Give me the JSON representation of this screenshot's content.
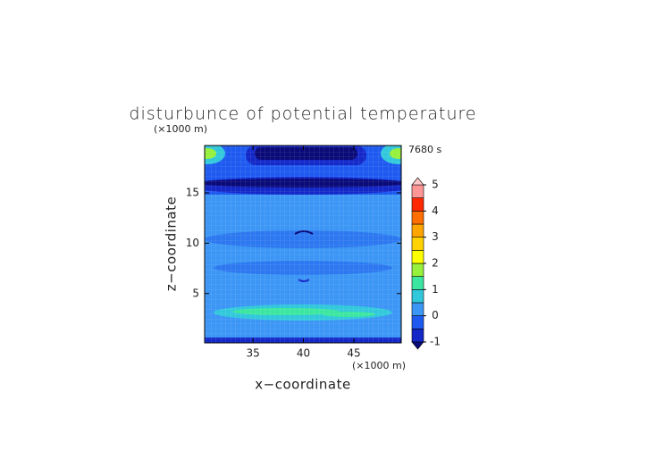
{
  "chart_data": {
    "type": "contour",
    "title": "disturbunce of potential temperature",
    "x_label": "x−coordinate",
    "y_label": "z−coordinate",
    "x_unit": "(×1000 m)",
    "y_unit": "(×1000 m)",
    "time_label": "7680 s",
    "xlim": [
      30.2,
      49.7
    ],
    "xticks": [
      35,
      40,
      45
    ],
    "ylim": [
      0.1,
      19.7
    ],
    "yticks": [
      5,
      10,
      15
    ],
    "colorbar": {
      "levels": [
        -1,
        -0.5,
        0,
        0.5,
        1,
        1.5,
        2,
        2.5,
        3,
        3.5,
        4,
        4.5,
        5
      ],
      "ticks": [
        -1,
        0,
        1,
        2,
        3,
        4,
        5
      ],
      "under_color": "#0a0a78",
      "over_color": "#ffc8c8",
      "colors": [
        "#1428c8",
        "#1e5af0",
        "#3c96f5",
        "#32c8dc",
        "#3ce6a0",
        "#96f03c",
        "#ffff00",
        "#ffd200",
        "#ffa500",
        "#ff6e00",
        "#ff2800",
        "#ff9696"
      ]
    }
  }
}
